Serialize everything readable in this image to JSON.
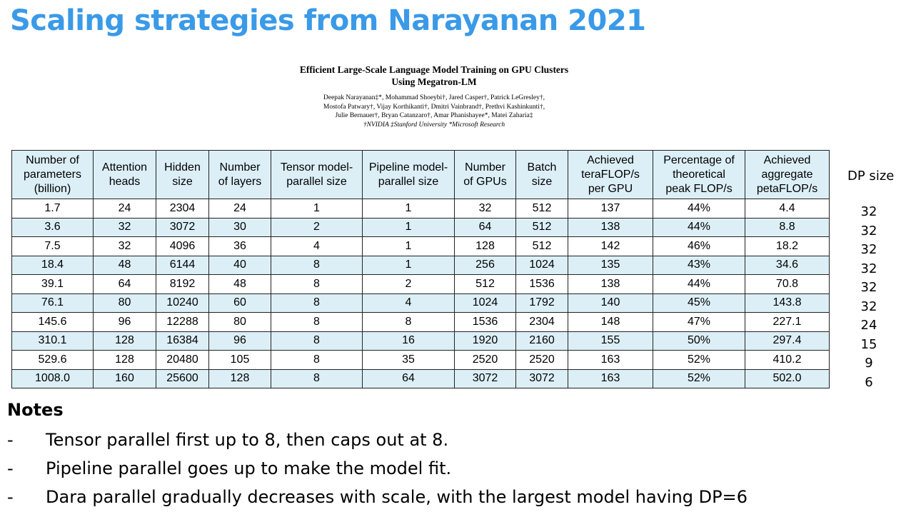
{
  "slide": {
    "title": "Scaling strategies from Narayanan 2021",
    "title_color": "#3a9ae8"
  },
  "paper": {
    "title_line1": "Efficient Large-Scale Language Model Training on GPU Clusters",
    "title_line2": "Using Megatron-LM",
    "authors_line1": "Deepak Narayanan‡*, Mohammad Shoeybi†, Jared Casper†, Patrick LeGresley†,",
    "authors_line2": "Mostofa Patwary†, Vijay Korthikanti†, Dmitri Vainbrand†, Prethvi Kashinkunti†,",
    "authors_line3": "Julie Bernauer†, Bryan Catanzaro†, Amar Phanishayee*, Matei Zaharia‡",
    "affiliations": "†NVIDIA ‡Stanford University *Microsoft Research"
  },
  "table": {
    "header_color": "#dceff7",
    "columns": [
      [
        "Number of",
        "parameters",
        "(billion)"
      ],
      [
        "Attention",
        "heads"
      ],
      [
        "Hidden",
        "size"
      ],
      [
        "Number",
        "of layers"
      ],
      [
        "Tensor model-",
        "parallel size"
      ],
      [
        "Pipeline model-",
        "parallel size"
      ],
      [
        "Number",
        "of GPUs"
      ],
      [
        "Batch",
        "size"
      ],
      [
        "Achieved",
        "teraFLOP/s",
        "per GPU"
      ],
      [
        "Percentage of",
        "theoretical",
        "peak FLOP/s"
      ],
      [
        "Achieved",
        "aggregate",
        "petaFLOP/s"
      ]
    ],
    "rows": [
      [
        "1.7",
        "24",
        "2304",
        "24",
        "1",
        "1",
        "32",
        "512",
        "137",
        "44%",
        "4.4"
      ],
      [
        "3.6",
        "32",
        "3072",
        "30",
        "2",
        "1",
        "64",
        "512",
        "138",
        "44%",
        "8.8"
      ],
      [
        "7.5",
        "32",
        "4096",
        "36",
        "4",
        "1",
        "128",
        "512",
        "142",
        "46%",
        "18.2"
      ],
      [
        "18.4",
        "48",
        "6144",
        "40",
        "8",
        "1",
        "256",
        "1024",
        "135",
        "43%",
        "34.6"
      ],
      [
        "39.1",
        "64",
        "8192",
        "48",
        "8",
        "2",
        "512",
        "1536",
        "138",
        "44%",
        "70.8"
      ],
      [
        "76.1",
        "80",
        "10240",
        "60",
        "8",
        "4",
        "1024",
        "1792",
        "140",
        "45%",
        "143.8"
      ],
      [
        "145.6",
        "96",
        "12288",
        "80",
        "8",
        "8",
        "1536",
        "2304",
        "148",
        "47%",
        "227.1"
      ],
      [
        "310.1",
        "128",
        "16384",
        "96",
        "8",
        "16",
        "1920",
        "2160",
        "155",
        "50%",
        "297.4"
      ],
      [
        "529.6",
        "128",
        "20480",
        "105",
        "8",
        "35",
        "2520",
        "2520",
        "163",
        "52%",
        "410.2"
      ],
      [
        "1008.0",
        "160",
        "25600",
        "128",
        "8",
        "64",
        "3072",
        "3072",
        "163",
        "52%",
        "502.0"
      ]
    ]
  },
  "dp": {
    "label": "DP size",
    "values": [
      "32",
      "32",
      "32",
      "32",
      "32",
      "32",
      "24",
      "15",
      "9",
      "6"
    ]
  },
  "notes": {
    "heading": "Notes",
    "items": [
      {
        "bullet": "-",
        "text": "Tensor parallel first up to 8, then caps out at 8."
      },
      {
        "bullet": "-",
        "text": "Pipeline parallel goes up to make the model fit."
      },
      {
        "bullet": "-",
        "text": "Dara parallel gradually decreases with scale, with the largest model having DP=6"
      }
    ]
  }
}
